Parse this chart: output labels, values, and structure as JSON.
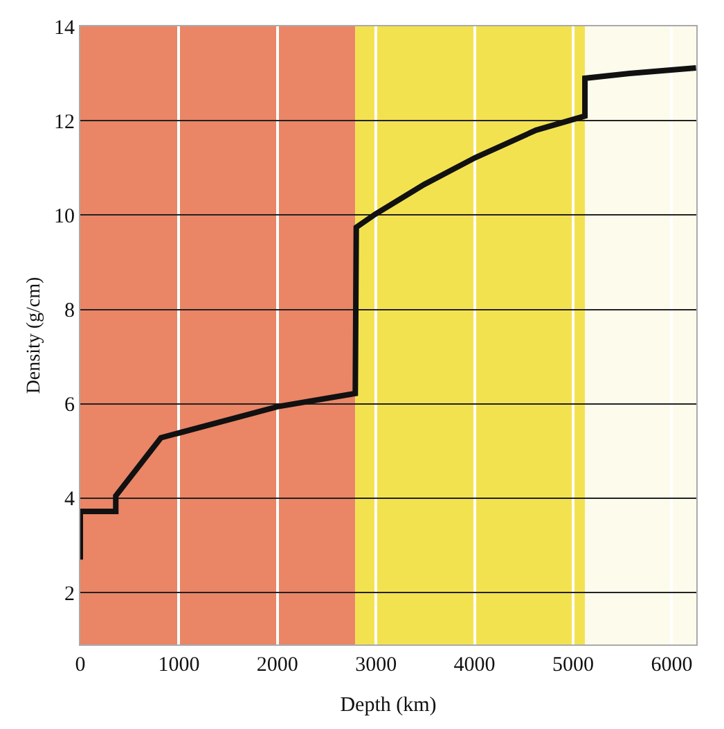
{
  "chart_data": {
    "type": "line",
    "xlabel": "Depth (km)",
    "ylabel": "Density (g/cm)",
    "x": [
      0,
      0,
      360,
      360,
      818,
      2000,
      2790,
      2800,
      2993,
      3490,
      4010,
      4624,
      5120,
      5120,
      5570,
      6247
    ],
    "series": [
      {
        "color": "#111111",
        "values": [
          2.7,
          3.72,
          3.72,
          4.05,
          5.28,
          5.94,
          6.22,
          9.74,
          10.02,
          10.65,
          11.22,
          11.8,
          12.1,
          12.9,
          13.0,
          13.12
        ]
      }
    ],
    "xlim": [
      0,
      6250
    ],
    "xticks": [
      0,
      1000,
      2000,
      3000,
      4000,
      5000,
      6000
    ],
    "ylim": [
      0.9,
      14
    ],
    "yticks": [
      2,
      4,
      6,
      8,
      10,
      12,
      14
    ],
    "bands": [
      {
        "axis": "x",
        "from": 0,
        "to": 2790,
        "color": "#ea8566"
      },
      {
        "axis": "x",
        "from": 2790,
        "to": 5120,
        "color": "#f3e250"
      },
      {
        "axis": "x",
        "from": 5120,
        "to": 6250,
        "color": "#fdfbec"
      }
    ],
    "grid": true,
    "marker": "none",
    "line_style": "solid"
  }
}
